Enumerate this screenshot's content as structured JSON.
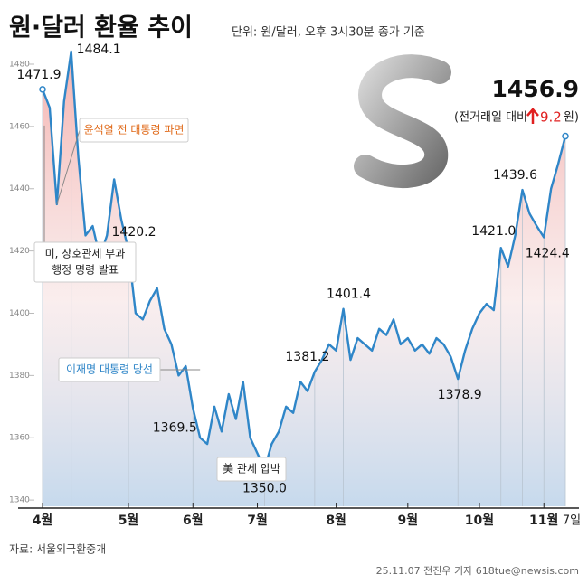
{
  "chart_data": {
    "type": "line",
    "title": "원·달러 환율 추이",
    "subtitle": "단위: 원/달러, 오후 3시30분 종가 기준",
    "color": "#2f86c8",
    "categories": [
      "4월",
      null,
      null,
      null,
      null,
      null,
      null,
      null,
      null,
      null,
      null,
      null,
      "5월",
      null,
      null,
      null,
      null,
      null,
      null,
      null,
      null,
      "6월",
      null,
      null,
      null,
      null,
      null,
      null,
      null,
      null,
      "7월",
      null,
      null,
      null,
      null,
      null,
      null,
      null,
      null,
      null,
      null,
      "8월",
      null,
      null,
      null,
      null,
      null,
      null,
      null,
      null,
      null,
      "9월",
      null,
      null,
      null,
      null,
      null,
      null,
      null,
      null,
      null,
      "10월",
      null,
      null,
      null,
      null,
      null,
      null,
      null,
      null,
      "11월",
      null,
      null,
      "7일"
    ],
    "values": [
      1471.9,
      1466,
      1435,
      1468,
      1484.1,
      1450,
      1425,
      1428,
      1418,
      1425,
      1443,
      1430,
      1420.2,
      1400,
      1398,
      1404,
      1408,
      1395,
      1390,
      1380,
      1383,
      1369.5,
      1360,
      1358,
      1370,
      1362,
      1374,
      1366,
      1378,
      1360,
      1355,
      1350.0,
      1358,
      1362,
      1370,
      1368,
      1378,
      1375,
      1381.2,
      1385,
      1390,
      1388,
      1401.4,
      1385,
      1392,
      1390,
      1388,
      1395,
      1393,
      1398,
      1390,
      1392,
      1388,
      1390,
      1387,
      1392,
      1390,
      1386,
      1378.9,
      1388,
      1395,
      1400,
      1403,
      1401,
      1421.0,
      1415,
      1425,
      1439.6,
      1432,
      1428,
      1424.4,
      1440,
      1448,
      1456.9
    ],
    "value_labels": [
      "1471.9",
      null,
      null,
      null,
      "1484.1",
      null,
      null,
      null,
      null,
      null,
      null,
      null,
      "1420.2",
      null,
      null,
      null,
      null,
      null,
      null,
      null,
      null,
      "1369.5",
      null,
      null,
      null,
      null,
      null,
      null,
      null,
      null,
      null,
      "1350.0",
      null,
      null,
      null,
      null,
      null,
      null,
      "1381.2",
      null,
      null,
      null,
      "1401.4",
      null,
      null,
      null,
      null,
      null,
      null,
      null,
      null,
      null,
      null,
      null,
      null,
      null,
      null,
      null,
      "1378.9",
      null,
      null,
      null,
      null,
      null,
      "1421.0",
      null,
      null,
      "1439.6",
      null,
      null,
      "1424.4",
      null,
      null,
      "1456.9"
    ],
    "ylim": [
      1338,
      1489
    ],
    "yticks": [
      1340,
      1360,
      1380,
      1400,
      1420,
      1440,
      1460,
      1480
    ],
    "grid": false,
    "change_label": "(전거래일 대비",
    "change": 9.2,
    "change_unit": "원)",
    "annotations": [
      {
        "lines": [
          "윤석열 전 대통령 파면"
        ],
        "color": "#e06a1a"
      },
      {
        "lines": [
          "미, 상호관세 부과",
          "행정 명령 발표"
        ],
        "color": "#222222"
      },
      {
        "lines": [
          "이재명 대통령 당선"
        ],
        "color": "#2f86c8"
      },
      {
        "lines": [
          "美 관세 압박"
        ],
        "color": "#222222"
      }
    ],
    "source": "자료: 서울외국환중개",
    "credit": "25.11.07 전진우 기자 618tue@newsis.com"
  }
}
